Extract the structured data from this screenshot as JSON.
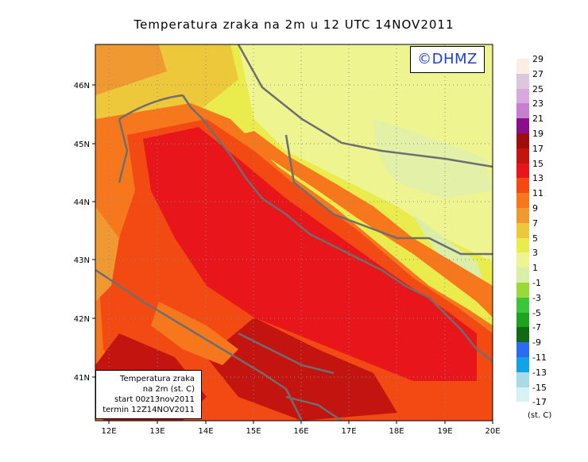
{
  "title": "Temperatura zraka na 2m u 12 UTC 14NOV2011",
  "watermark": "©DHMZ",
  "info_box": {
    "line1": "Temperatura zraka",
    "line2": "na 2m (st. C)",
    "line3": "start 00z13nov2011",
    "line4": "termin 12Z14NOV2011"
  },
  "axes": {
    "x_ticks": [
      "12E",
      "13E",
      "14E",
      "15E",
      "16E",
      "17E",
      "18E",
      "19E",
      "20E"
    ],
    "y_ticks": [
      "41N",
      "42N",
      "43N",
      "44N",
      "45N",
      "46N"
    ]
  },
  "legend": {
    "unit": "(st. C)",
    "entries": [
      {
        "label": "29",
        "color": "#fbeee2"
      },
      {
        "label": "27",
        "color": "#dcc7dc"
      },
      {
        "label": "25",
        "color": "#d8a9de"
      },
      {
        "label": "23",
        "color": "#c77fce"
      },
      {
        "label": "21",
        "color": "#8b0f8b"
      },
      {
        "label": "19",
        "color": "#a00d0d"
      },
      {
        "label": "17",
        "color": "#c4140f"
      },
      {
        "label": "15",
        "color": "#e8161a"
      },
      {
        "label": "13",
        "color": "#f34a14"
      },
      {
        "label": "11",
        "color": "#f7771d"
      },
      {
        "label": "9",
        "color": "#f09930"
      },
      {
        "label": "7",
        "color": "#ecc83a"
      },
      {
        "label": "5",
        "color": "#eaec4e"
      },
      {
        "label": "3",
        "color": "#eef590"
      },
      {
        "label": "1",
        "color": "#d9efa7"
      },
      {
        "label": "-1",
        "color": "#9bd93a"
      },
      {
        "label": "-3",
        "color": "#3cc63c"
      },
      {
        "label": "-5",
        "color": "#1fa21f"
      },
      {
        "label": "-7",
        "color": "#116a11"
      },
      {
        "label": "-9",
        "color": "#2a6bf2"
      },
      {
        "label": "-11",
        "color": "#12a3e6"
      },
      {
        "label": "-13",
        "color": "#a8dbe6"
      },
      {
        "label": "-15",
        "color": "#d6f2f4"
      },
      {
        "label": "-17",
        "color": "#ffffff"
      }
    ]
  }
}
